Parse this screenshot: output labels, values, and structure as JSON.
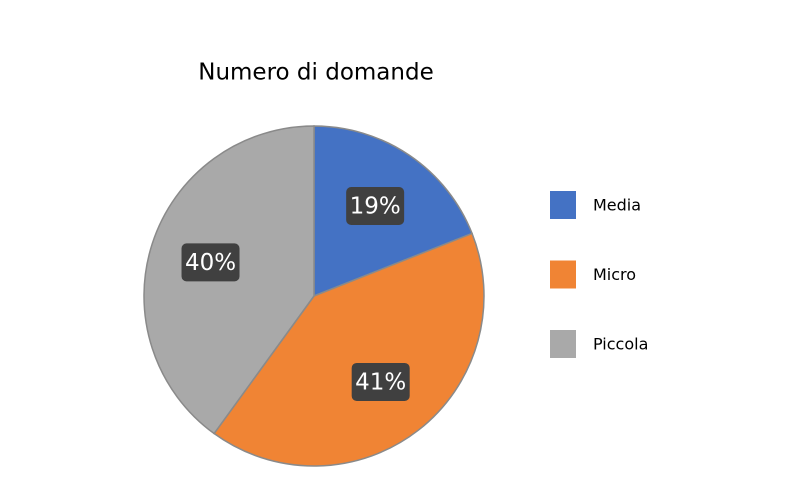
{
  "chart_data": {
    "type": "pie",
    "title": "Numero di domande",
    "categories": [
      "Media",
      "Micro",
      "Piccola"
    ],
    "values": [
      19,
      41,
      40
    ],
    "value_labels": [
      "19%",
      "41%",
      "40%"
    ],
    "colors": [
      "#4472c4",
      "#f08434",
      "#a9a9a9"
    ],
    "legend": "right"
  }
}
